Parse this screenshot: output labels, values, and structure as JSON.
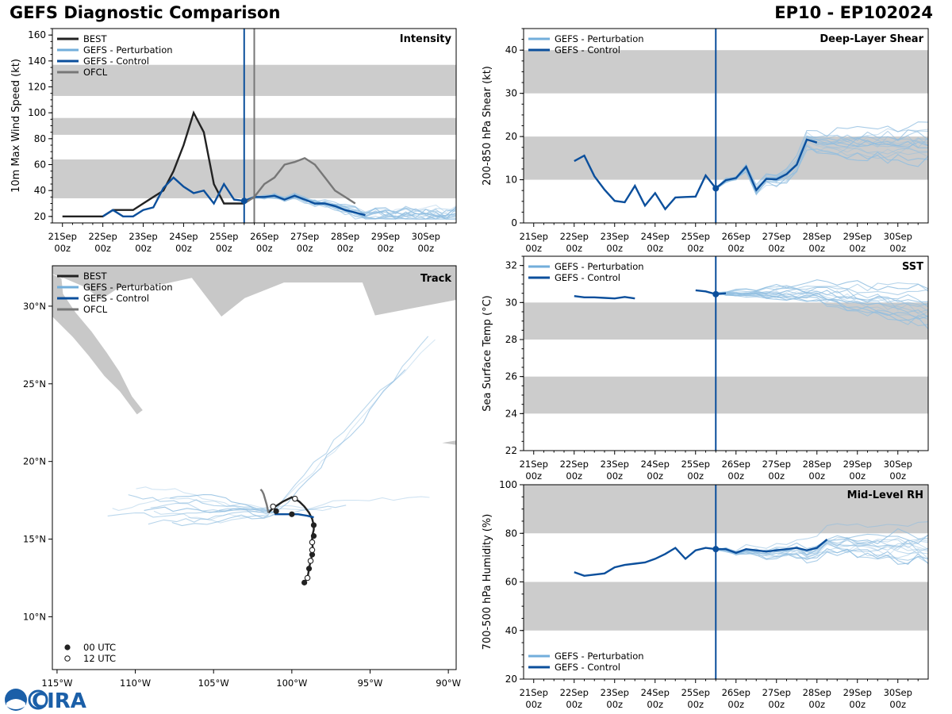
{
  "header": {
    "title": "GEFS Diagnostic Comparison",
    "storm_id": "EP10 - EP102024"
  },
  "colors": {
    "best": "#222222",
    "perturbation": "#8fbde0",
    "control": "#0b4f9c",
    "ofcl": "#777777",
    "band": "#cccccc",
    "land": "#c8c8c8"
  },
  "time_ticks": [
    "21Sep",
    "22Sep",
    "23Sep",
    "24Sep",
    "25Sep",
    "26Sep",
    "27Sep",
    "28Sep",
    "29Sep",
    "30Sep"
  ],
  "time_hour": "00z",
  "markers": {
    "legend_00": "00 UTC",
    "legend_12": "12 UTC"
  },
  "logo": {
    "text": "CIRA"
  },
  "chart_data": [
    {
      "id": "intensity",
      "type": "line",
      "title": "Intensity",
      "ylabel": "10m Max Wind Speed (kt)",
      "ylim": [
        15,
        165
      ],
      "yticks": [
        20,
        40,
        60,
        80,
        100,
        120,
        140,
        160
      ],
      "xlim": [
        -0.25,
        9.75
      ],
      "bands": [
        [
          34,
          64
        ],
        [
          83,
          96
        ],
        [
          113,
          137
        ]
      ],
      "vlines": [
        4.5,
        4.75
      ],
      "legend": [
        "BEST",
        "GEFS - Perturbation",
        "GEFS - Control",
        "OFCL"
      ],
      "series": [
        {
          "name": "BEST",
          "x": [
            0,
            0.25,
            0.5,
            0.75,
            1,
            1.25,
            1.5,
            1.75,
            2,
            2.25,
            2.5,
            2.75,
            3,
            3.25,
            3.5,
            3.75,
            4,
            4.25,
            4.5
          ],
          "y": [
            20,
            20,
            20,
            20,
            20,
            25,
            25,
            25,
            30,
            35,
            40,
            55,
            75,
            100,
            85,
            45,
            30,
            30,
            30
          ]
        },
        {
          "name": "GEFS - Control",
          "x": [
            1,
            1.25,
            1.5,
            1.75,
            2,
            2.25,
            2.5,
            2.75,
            3,
            3.25,
            3.5,
            3.75,
            4,
            4.25,
            4.5,
            4.75,
            5,
            5.25,
            5.5,
            5.75,
            6,
            6.25,
            6.5,
            6.75,
            7,
            7.25,
            7.5
          ],
          "y": [
            20,
            25,
            20,
            20,
            25,
            27,
            42,
            50,
            43,
            38,
            40,
            30,
            45,
            33,
            32,
            35,
            35,
            36,
            33,
            36,
            33,
            30,
            30,
            28,
            25,
            23,
            21
          ]
        },
        {
          "name": "OFCL",
          "x": [
            4.5,
            4.75,
            5,
            5.25,
            5.5,
            5.75,
            6,
            6.25,
            6.5,
            6.75,
            7,
            7.25
          ],
          "y": [
            30,
            35,
            45,
            50,
            60,
            62,
            65,
            60,
            50,
            40,
            35,
            30
          ]
        }
      ]
    },
    {
      "id": "shear",
      "type": "line",
      "title": "Deep-Layer Shear",
      "ylabel": "200-850 hPa Shear (kt)",
      "ylim": [
        0,
        45
      ],
      "yticks": [
        0,
        10,
        20,
        30,
        40
      ],
      "xlim": [
        -0.25,
        9.75
      ],
      "bands": [
        [
          10,
          20
        ],
        [
          30,
          40
        ]
      ],
      "vlines": [
        4.5
      ],
      "legend": [
        "GEFS - Perturbation",
        "GEFS - Control"
      ],
      "series": [
        {
          "name": "GEFS - Control",
          "x": [
            1,
            1.25,
            1.5,
            1.75,
            2,
            2.25,
            2.5,
            2.75,
            3,
            3.25,
            3.5,
            3.75,
            4,
            4.25,
            4.5,
            4.75,
            5,
            5.25,
            5.5,
            5.75,
            6,
            6.25,
            6.5,
            6.75,
            7,
            7.25,
            7.5
          ],
          "y": [
            14.3,
            15.6,
            10.8,
            7.7,
            5.1,
            4.8,
            8.6,
            4.0,
            6.9,
            3.2,
            5.9,
            6.0,
            6.1,
            11.0,
            8.0,
            9.9,
            10.4,
            13.0,
            7.6,
            10.2,
            10.1,
            11.3,
            13.5,
            19.3,
            18.6,
            null,
            null
          ]
        }
      ]
    },
    {
      "id": "sst",
      "type": "line",
      "title": "SST",
      "ylabel": "Sea Surface Temp (°C)",
      "ylim": [
        22,
        32.5
      ],
      "yticks": [
        22,
        24,
        26,
        28,
        30,
        32
      ],
      "xlim": [
        -0.25,
        9.75
      ],
      "bands": [
        [
          24,
          26
        ],
        [
          28,
          30
        ]
      ],
      "vlines": [
        4.5
      ],
      "legend": [
        "GEFS - Perturbation",
        "GEFS - Control"
      ],
      "series": [
        {
          "name": "GEFS - Control",
          "x": [
            1,
            1.25,
            1.5,
            1.75,
            2,
            2.25,
            2.5
          ],
          "y": [
            30.35,
            30.28,
            30.28,
            30.25,
            30.22,
            30.3,
            30.22
          ]
        },
        {
          "name": "GEFS - Control",
          "x": [
            4,
            4.25,
            4.5,
            4.75
          ],
          "y": [
            30.66,
            30.6,
            30.45,
            30.5
          ]
        }
      ]
    },
    {
      "id": "rh",
      "type": "line",
      "title": "Mid-Level RH",
      "ylabel": "700-500 hPa Humidity (%)",
      "ylim": [
        20,
        100
      ],
      "yticks": [
        20,
        40,
        60,
        80,
        100
      ],
      "xlim": [
        -0.25,
        9.75
      ],
      "bands": [
        [
          40,
          60
        ],
        [
          80,
          100
        ]
      ],
      "vlines": [
        4.5
      ],
      "legend": [
        "GEFS - Perturbation",
        "GEFS - Control"
      ],
      "series": [
        {
          "name": "GEFS - Control",
          "x": [
            1,
            1.25,
            1.5,
            1.75,
            2,
            2.25,
            2.5,
            2.75,
            3,
            3.25,
            3.5,
            3.75,
            4,
            4.25,
            4.5,
            4.75,
            5,
            5.25,
            5.5,
            5.75,
            6,
            6.25,
            6.5,
            6.75,
            7,
            7.25,
            7.5
          ],
          "y": [
            64,
            62.5,
            63,
            63.5,
            66,
            67,
            67.5,
            68,
            69.5,
            71.5,
            74,
            69.5,
            73,
            74,
            73.5,
            73.5,
            72,
            73.5,
            73,
            72.5,
            73,
            73.5,
            74,
            73,
            74,
            77.5,
            null
          ]
        }
      ]
    },
    {
      "id": "track",
      "type": "scatter",
      "title": "Track",
      "xlim": [
        -115.3,
        -89.5
      ],
      "ylim": [
        6.6,
        32.6
      ],
      "xticks": [
        -115,
        -110,
        -105,
        -100,
        -95,
        -90
      ],
      "xtick_labels": [
        "115°W",
        "110°W",
        "105°W",
        "100°W",
        "95°W",
        "90°W"
      ],
      "yticks": [
        10,
        15,
        20,
        25,
        30
      ],
      "ytick_labels": [
        "10°N",
        "15°N",
        "20°N",
        "25°N",
        "30°N"
      ],
      "legend": [
        "BEST",
        "GEFS - Perturbation",
        "GEFS - Control",
        "OFCL"
      ],
      "series": [
        {
          "name": "BEST",
          "lon": [
            -99.2,
            -99.0,
            -98.9,
            -98.8,
            -98.7,
            -98.65,
            -98.7,
            -98.7,
            -98.6,
            -98.6,
            -98.7,
            -98.9,
            -99.2,
            -99.5,
            -99.8,
            -100.0,
            -100.2,
            -100.6,
            -100.9,
            -101.2,
            -101.5
          ],
          "lat": [
            12.2,
            12.5,
            13.1,
            13.6,
            14.0,
            14.3,
            14.8,
            15.2,
            15.6,
            15.9,
            16.3,
            16.7,
            17.1,
            17.4,
            17.6,
            17.7,
            17.6,
            17.4,
            17.2,
            17.0,
            16.7
          ]
        },
        {
          "name": "GEFS - Control",
          "lon": [
            -101.1,
            -100.7,
            -100.2,
            -99.6,
            -99.0,
            -98.6
          ],
          "lat": [
            16.6,
            16.6,
            16.6,
            16.6,
            16.5,
            16.4
          ]
        },
        {
          "name": "OFCL",
          "lon": [
            -101.5,
            -101.6,
            -101.8,
            -101.9,
            -102.0
          ],
          "lat": [
            16.7,
            17.2,
            17.9,
            18.1,
            18.2
          ]
        }
      ],
      "points_00utc": {
        "lon": [
          -99.2,
          -98.9,
          -98.7,
          -98.6,
          -98.6,
          -100.0,
          -101.0
        ],
        "lat": [
          12.2,
          13.1,
          14.0,
          15.2,
          15.9,
          16.6,
          16.8
        ]
      },
      "points_12utc": {
        "lon": [
          -99.0,
          -98.8,
          -98.7,
          -98.7,
          -99.8,
          -101.2
        ],
        "lat": [
          12.5,
          13.6,
          14.3,
          14.8,
          17.6,
          17.1
        ]
      }
    }
  ]
}
